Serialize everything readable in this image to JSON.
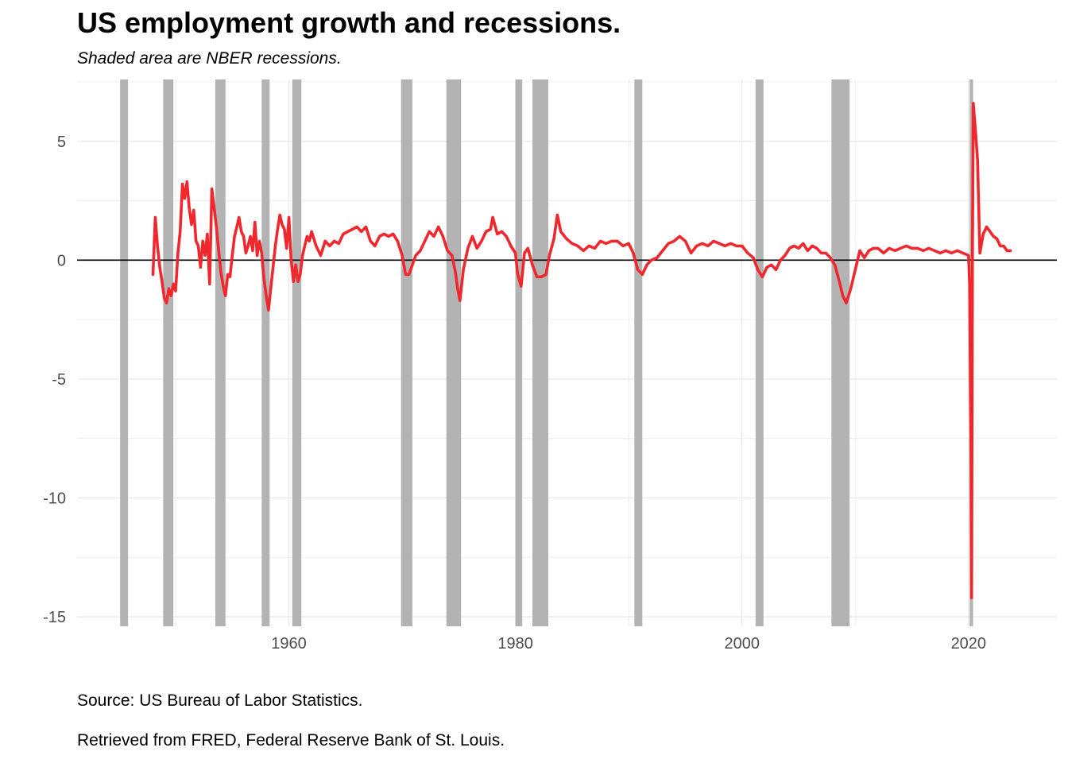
{
  "title": "US employment growth and recessions.",
  "subtitle": "Shaded area are NBER recessions.",
  "caption": {
    "line1": "Source: US Bureau of Labor Statistics.",
    "line2": "Retrieved from FRED, Federal Reserve Bank of St. Louis."
  },
  "colors": {
    "line": "#f0282d",
    "recession": "#b3b3b3",
    "zero_line": "#000000",
    "grid": "#ebebeb"
  },
  "chart_data": {
    "type": "line",
    "title": "US employment growth and recessions.",
    "subtitle": "Shaded area are NBER recessions.",
    "xlabel": "",
    "ylabel": "",
    "xlim": [
      1941.3,
      2027.8
    ],
    "ylim": [
      -15.4,
      7.6
    ],
    "x_ticks": [
      1960,
      1980,
      2000,
      2020
    ],
    "y_ticks": [
      5,
      0,
      -5,
      -10,
      -15
    ],
    "grid": true,
    "zero_line": 0,
    "recessions": [
      [
        1945.1,
        1945.8
      ],
      [
        1948.9,
        1949.8
      ],
      [
        1953.5,
        1954.4
      ],
      [
        1957.6,
        1958.3
      ],
      [
        1960.3,
        1961.1
      ],
      [
        1969.9,
        1970.9
      ],
      [
        1973.9,
        1975.2
      ],
      [
        1980.0,
        1980.6
      ],
      [
        1981.5,
        1982.9
      ],
      [
        1990.5,
        1991.2
      ],
      [
        2001.2,
        2001.9
      ],
      [
        2007.9,
        2009.5
      ],
      [
        2020.1,
        2020.4
      ]
    ],
    "series": [
      {
        "points": [
          [
            1948.0,
            -0.6
          ],
          [
            1948.2,
            1.8
          ],
          [
            1948.4,
            0.6
          ],
          [
            1948.6,
            -0.3
          ],
          [
            1948.8,
            -0.9
          ],
          [
            1949.0,
            -1.6
          ],
          [
            1949.2,
            -1.8
          ],
          [
            1949.4,
            -1.2
          ],
          [
            1949.6,
            -1.5
          ],
          [
            1949.8,
            -1.0
          ],
          [
            1950.0,
            -1.3
          ],
          [
            1950.2,
            0.3
          ],
          [
            1950.4,
            1.2
          ],
          [
            1950.6,
            3.2
          ],
          [
            1950.8,
            2.6
          ],
          [
            1951.0,
            3.3
          ],
          [
            1951.2,
            2.2
          ],
          [
            1951.4,
            1.5
          ],
          [
            1951.6,
            2.1
          ],
          [
            1951.8,
            0.8
          ],
          [
            1952.0,
            0.6
          ],
          [
            1952.2,
            -0.3
          ],
          [
            1952.4,
            0.8
          ],
          [
            1952.6,
            0.2
          ],
          [
            1952.8,
            1.1
          ],
          [
            1953.0,
            -1.0
          ],
          [
            1953.2,
            3.0
          ],
          [
            1953.4,
            2.2
          ],
          [
            1953.6,
            1.4
          ],
          [
            1953.8,
            0.4
          ],
          [
            1954.0,
            -0.5
          ],
          [
            1954.2,
            -1.1
          ],
          [
            1954.4,
            -1.5
          ],
          [
            1954.6,
            -0.6
          ],
          [
            1954.8,
            -0.7
          ],
          [
            1955.0,
            0.2
          ],
          [
            1955.2,
            1.0
          ],
          [
            1955.4,
            1.4
          ],
          [
            1955.6,
            1.8
          ],
          [
            1955.8,
            1.2
          ],
          [
            1956.0,
            1.0
          ],
          [
            1956.2,
            0.3
          ],
          [
            1956.4,
            0.6
          ],
          [
            1956.6,
            1.0
          ],
          [
            1956.8,
            0.4
          ],
          [
            1957.0,
            1.6
          ],
          [
            1957.2,
            0.2
          ],
          [
            1957.4,
            0.8
          ],
          [
            1957.6,
            0.3
          ],
          [
            1957.8,
            -0.8
          ],
          [
            1958.0,
            -1.5
          ],
          [
            1958.2,
            -2.1
          ],
          [
            1958.4,
            -1.2
          ],
          [
            1958.6,
            -0.3
          ],
          [
            1958.8,
            0.6
          ],
          [
            1959.0,
            1.3
          ],
          [
            1959.2,
            1.9
          ],
          [
            1959.4,
            1.5
          ],
          [
            1959.6,
            1.3
          ],
          [
            1959.8,
            0.5
          ],
          [
            1960.0,
            1.8
          ],
          [
            1960.2,
            0.0
          ],
          [
            1960.4,
            -0.9
          ],
          [
            1960.6,
            -0.2
          ],
          [
            1960.8,
            -0.9
          ],
          [
            1961.0,
            -0.6
          ],
          [
            1961.2,
            0.2
          ],
          [
            1961.4,
            0.6
          ],
          [
            1961.6,
            1.0
          ],
          [
            1961.8,
            0.8
          ],
          [
            1962.0,
            1.2
          ],
          [
            1962.4,
            0.6
          ],
          [
            1962.8,
            0.2
          ],
          [
            1963.2,
            0.8
          ],
          [
            1963.6,
            0.6
          ],
          [
            1964.0,
            0.8
          ],
          [
            1964.4,
            0.7
          ],
          [
            1964.8,
            1.1
          ],
          [
            1965.2,
            1.2
          ],
          [
            1965.6,
            1.3
          ],
          [
            1966.0,
            1.4
          ],
          [
            1966.4,
            1.2
          ],
          [
            1966.8,
            1.4
          ],
          [
            1967.2,
            0.8
          ],
          [
            1967.6,
            0.6
          ],
          [
            1968.0,
            1.0
          ],
          [
            1968.4,
            1.1
          ],
          [
            1968.8,
            1.0
          ],
          [
            1969.2,
            1.1
          ],
          [
            1969.6,
            0.8
          ],
          [
            1970.0,
            0.2
          ],
          [
            1970.3,
            -0.6
          ],
          [
            1970.6,
            -0.6
          ],
          [
            1970.9,
            -0.2
          ],
          [
            1971.2,
            0.2
          ],
          [
            1971.6,
            0.4
          ],
          [
            1972.0,
            0.8
          ],
          [
            1972.4,
            1.2
          ],
          [
            1972.8,
            1.0
          ],
          [
            1973.2,
            1.4
          ],
          [
            1973.6,
            1.0
          ],
          [
            1974.0,
            0.4
          ],
          [
            1974.4,
            0.2
          ],
          [
            1974.7,
            -0.5
          ],
          [
            1974.9,
            -1.2
          ],
          [
            1975.1,
            -1.7
          ],
          [
            1975.4,
            -0.4
          ],
          [
            1975.8,
            0.5
          ],
          [
            1976.2,
            1.0
          ],
          [
            1976.6,
            0.5
          ],
          [
            1977.0,
            0.8
          ],
          [
            1977.4,
            1.2
          ],
          [
            1977.8,
            1.3
          ],
          [
            1978.0,
            1.8
          ],
          [
            1978.4,
            1.1
          ],
          [
            1978.8,
            1.2
          ],
          [
            1979.2,
            1.0
          ],
          [
            1979.6,
            0.6
          ],
          [
            1980.0,
            0.3
          ],
          [
            1980.2,
            -0.6
          ],
          [
            1980.5,
            -1.1
          ],
          [
            1980.8,
            0.3
          ],
          [
            1981.1,
            0.5
          ],
          [
            1981.5,
            -0.2
          ],
          [
            1981.9,
            -0.7
          ],
          [
            1982.3,
            -0.7
          ],
          [
            1982.7,
            -0.6
          ],
          [
            1983.0,
            0.2
          ],
          [
            1983.4,
            0.9
          ],
          [
            1983.7,
            1.9
          ],
          [
            1984.0,
            1.2
          ],
          [
            1984.5,
            0.9
          ],
          [
            1985.0,
            0.7
          ],
          [
            1985.5,
            0.6
          ],
          [
            1986.0,
            0.4
          ],
          [
            1986.5,
            0.6
          ],
          [
            1987.0,
            0.5
          ],
          [
            1987.5,
            0.8
          ],
          [
            1988.0,
            0.7
          ],
          [
            1988.5,
            0.8
          ],
          [
            1989.0,
            0.8
          ],
          [
            1989.5,
            0.6
          ],
          [
            1990.0,
            0.7
          ],
          [
            1990.4,
            0.3
          ],
          [
            1990.8,
            -0.4
          ],
          [
            1991.2,
            -0.6
          ],
          [
            1991.6,
            -0.2
          ],
          [
            1992.0,
            0.0
          ],
          [
            1992.5,
            0.1
          ],
          [
            1993.0,
            0.4
          ],
          [
            1993.5,
            0.7
          ],
          [
            1994.0,
            0.8
          ],
          [
            1994.5,
            1.0
          ],
          [
            1995.0,
            0.8
          ],
          [
            1995.5,
            0.3
          ],
          [
            1996.0,
            0.6
          ],
          [
            1996.5,
            0.7
          ],
          [
            1997.0,
            0.6
          ],
          [
            1997.5,
            0.8
          ],
          [
            1998.0,
            0.7
          ],
          [
            1998.5,
            0.6
          ],
          [
            1999.0,
            0.7
          ],
          [
            1999.5,
            0.6
          ],
          [
            2000.0,
            0.6
          ],
          [
            2000.5,
            0.3
          ],
          [
            2001.0,
            0.1
          ],
          [
            2001.4,
            -0.4
          ],
          [
            2001.8,
            -0.7
          ],
          [
            2002.2,
            -0.3
          ],
          [
            2002.6,
            -0.2
          ],
          [
            2003.0,
            -0.4
          ],
          [
            2003.4,
            0.0
          ],
          [
            2003.8,
            0.2
          ],
          [
            2004.2,
            0.5
          ],
          [
            2004.6,
            0.6
          ],
          [
            2005.0,
            0.5
          ],
          [
            2005.4,
            0.7
          ],
          [
            2005.8,
            0.4
          ],
          [
            2006.2,
            0.6
          ],
          [
            2006.6,
            0.5
          ],
          [
            2007.0,
            0.3
          ],
          [
            2007.4,
            0.3
          ],
          [
            2007.8,
            0.1
          ],
          [
            2008.2,
            -0.2
          ],
          [
            2008.6,
            -0.9
          ],
          [
            2008.9,
            -1.5
          ],
          [
            2009.2,
            -1.8
          ],
          [
            2009.6,
            -1.2
          ],
          [
            2010.0,
            -0.4
          ],
          [
            2010.4,
            0.4
          ],
          [
            2010.8,
            0.1
          ],
          [
            2011.2,
            0.4
          ],
          [
            2011.6,
            0.5
          ],
          [
            2012.0,
            0.5
          ],
          [
            2012.5,
            0.3
          ],
          [
            2013.0,
            0.5
          ],
          [
            2013.5,
            0.4
          ],
          [
            2014.0,
            0.5
          ],
          [
            2014.5,
            0.6
          ],
          [
            2015.0,
            0.5
          ],
          [
            2015.5,
            0.5
          ],
          [
            2016.0,
            0.4
          ],
          [
            2016.5,
            0.5
          ],
          [
            2017.0,
            0.4
          ],
          [
            2017.5,
            0.3
          ],
          [
            2018.0,
            0.4
          ],
          [
            2018.5,
            0.3
          ],
          [
            2019.0,
            0.4
          ],
          [
            2019.5,
            0.3
          ],
          [
            2020.0,
            0.2
          ],
          [
            2020.1,
            -1.0
          ],
          [
            2020.2,
            -7.5
          ],
          [
            2020.27,
            -14.2
          ],
          [
            2020.35,
            0.5
          ],
          [
            2020.42,
            6.6
          ],
          [
            2020.6,
            5.5
          ],
          [
            2020.8,
            4.2
          ],
          [
            2021.0,
            0.3
          ],
          [
            2021.3,
            1.1
          ],
          [
            2021.6,
            1.4
          ],
          [
            2021.9,
            1.2
          ],
          [
            2022.2,
            1.0
          ],
          [
            2022.5,
            0.9
          ],
          [
            2022.8,
            0.6
          ],
          [
            2023.1,
            0.6
          ],
          [
            2023.4,
            0.4
          ],
          [
            2023.7,
            0.4
          ]
        ]
      }
    ]
  }
}
